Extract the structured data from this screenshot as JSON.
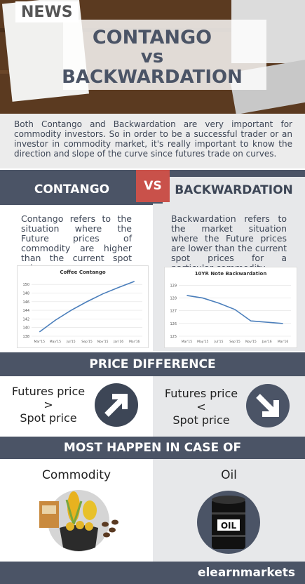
{
  "header": {
    "badge": "NEWS",
    "title": [
      "CONTANGO",
      "vs",
      "BACKWARDATION"
    ]
  },
  "intro": "Both Contango and Backwardation are very important for commodity investors.  So in order to be a successful trader or an investor in commodity market, it's really important to know the direction and slope of the curve since futures trade on curves.",
  "headings": {
    "left": "CONTANGO",
    "middle": "VS",
    "right": "BACKWARDATION"
  },
  "definitions": {
    "contango": "Contango refers to the situation where the Future prices of commodity are higher than the current spot price.",
    "backwardation": "Backwardation refers to the market situation where the Future prices are lower than the current spot prices for a particular commodity."
  },
  "chart_data": [
    {
      "type": "line",
      "title": "Coffee Contango",
      "categories": [
        "Mar'15",
        "May'15",
        "Jul'15",
        "Sep'15",
        "Nov'15",
        "Jan'16",
        "Mar'16"
      ],
      "values": [
        139,
        141.7,
        144,
        146,
        147.8,
        149.3,
        150.7
      ],
      "color": "#4a7ebb",
      "ylim": [
        138,
        151
      ],
      "yticks": [
        138,
        140,
        142,
        144,
        146,
        148,
        150
      ],
      "grid": true
    },
    {
      "type": "line",
      "title": "10YR Note Backwardation",
      "categories": [
        "Mar'15",
        "May'15",
        "Jul'15",
        "Sep'15",
        "Nov'15",
        "Jan'16",
        "Mar'16"
      ],
      "values": [
        128.2,
        128.0,
        127.6,
        127.1,
        126.2,
        126.1,
        126.0
      ],
      "color": "#4a7ebb",
      "ylim": [
        125,
        129.3
      ],
      "yticks": [
        125,
        126,
        127,
        128,
        129
      ],
      "grid": true
    }
  ],
  "price_difference": {
    "title": "PRICE DIFFERENCE",
    "contango": [
      "Futures price",
      ">",
      "Spot price"
    ],
    "backwardation": [
      "Futures price",
      "<",
      "Spot price"
    ]
  },
  "cases": {
    "title": "MOST HAPPEN IN CASE OF",
    "contango": "Commodity",
    "backwardation": "Oil",
    "barrel_label": "OIL"
  },
  "footer": {
    "brand": "elearnmarkets"
  }
}
